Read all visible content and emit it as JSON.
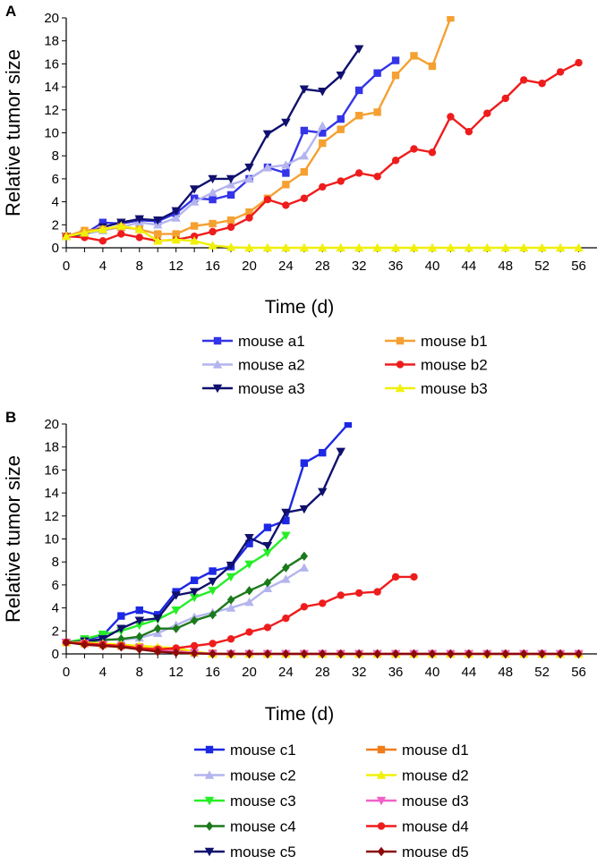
{
  "chart_data": [
    {
      "type": "line",
      "panel_label": "A",
      "title": "",
      "xlabel": "Time (d)",
      "ylabel": "Relative tumor size",
      "xlim": [
        0,
        58
      ],
      "ylim": [
        0,
        20
      ],
      "xticks": [
        "0",
        "4",
        "8",
        "12",
        "16",
        "20",
        "24",
        "28",
        "32",
        "36",
        "40",
        "44",
        "48",
        "52",
        "56"
      ],
      "yticks": [
        "0",
        "2",
        "4",
        "6",
        "8",
        "10",
        "12",
        "14",
        "16",
        "18",
        "20"
      ],
      "legend_position": "bottom",
      "series": [
        {
          "name": "mouse a1",
          "color": "#3434e8",
          "marker": "square",
          "x": [
            0,
            2,
            4,
            6,
            8,
            10,
            12,
            14,
            16,
            18,
            20,
            22,
            24,
            26,
            28,
            30,
            32,
            34,
            36
          ],
          "y": [
            1,
            1.2,
            2.2,
            2.1,
            2.4,
            2.3,
            3.0,
            4.3,
            4.2,
            4.6,
            6.0,
            7.0,
            6.5,
            10.2,
            10.0,
            11.2,
            13.7,
            15.2,
            16.3
          ]
        },
        {
          "name": "mouse a2",
          "color": "#b4b4ee",
          "marker": "triangle-up",
          "x": [
            0,
            2,
            4,
            6,
            8,
            10,
            12,
            14,
            16,
            18,
            20,
            22,
            24,
            26,
            28
          ],
          "y": [
            1,
            1.2,
            1.5,
            1.8,
            2.2,
            2.0,
            2.6,
            4.0,
            4.8,
            5.5,
            6.0,
            7.0,
            7.2,
            8.0,
            10.6
          ]
        },
        {
          "name": "mouse a3",
          "color": "#10106e",
          "marker": "triangle-down",
          "x": [
            0,
            2,
            4,
            6,
            8,
            10,
            12,
            14,
            16,
            18,
            20,
            22,
            24,
            26,
            28,
            30,
            32
          ],
          "y": [
            1,
            1.2,
            1.8,
            2.2,
            2.5,
            2.4,
            3.2,
            5.1,
            6.0,
            6.0,
            7.0,
            9.9,
            10.9,
            13.8,
            13.6,
            15.0,
            17.3
          ]
        },
        {
          "name": "mouse b1",
          "color": "#f5a031",
          "marker": "square",
          "x": [
            0,
            2,
            4,
            6,
            8,
            10,
            12,
            14,
            16,
            18,
            20,
            22,
            24,
            26,
            28,
            30,
            32,
            34,
            36,
            38,
            40,
            42
          ],
          "y": [
            1,
            1.5,
            1.6,
            1.8,
            1.6,
            1.2,
            1.2,
            1.9,
            2.1,
            2.4,
            3.1,
            4.3,
            5.5,
            6.6,
            9.1,
            10.3,
            11.5,
            11.8,
            15.0,
            16.7,
            15.8,
            20
          ]
        },
        {
          "name": "mouse b2",
          "color": "#ee1c1c",
          "marker": "circle",
          "x": [
            0,
            2,
            4,
            6,
            8,
            10,
            12,
            14,
            16,
            18,
            20,
            22,
            24,
            26,
            28,
            30,
            32,
            34,
            36,
            38,
            40,
            42,
            44,
            46,
            48,
            50,
            52,
            54,
            56
          ],
          "y": [
            1,
            0.9,
            0.6,
            1.2,
            0.9,
            0.6,
            0.7,
            1.0,
            1.4,
            1.8,
            2.6,
            4.2,
            3.7,
            4.3,
            5.3,
            5.8,
            6.5,
            6.2,
            7.6,
            8.6,
            8.3,
            11.4,
            10.1,
            11.7,
            13.0,
            14.6,
            14.3,
            15.3,
            16.1
          ]
        },
        {
          "name": "mouse b3",
          "color": "#f0f00a",
          "marker": "triangle-up",
          "x": [
            0,
            2,
            4,
            6,
            8,
            10,
            12,
            14,
            16,
            18,
            20,
            22,
            24,
            26,
            28,
            30,
            32,
            34,
            36,
            38,
            40,
            42,
            44,
            46,
            48,
            50,
            52,
            54,
            56
          ],
          "y": [
            1,
            1.3,
            1.6,
            1.9,
            1.6,
            0.6,
            0.7,
            0.6,
            0.2,
            0.05,
            0,
            0,
            0,
            0,
            0,
            0,
            0,
            0,
            0,
            0,
            0,
            0,
            0,
            0,
            0,
            0,
            0,
            0,
            0
          ]
        }
      ]
    },
    {
      "type": "line",
      "panel_label": "B",
      "title": "",
      "xlabel": "Time (d)",
      "ylabel": "Relative tumor size",
      "xlim": [
        0,
        58
      ],
      "ylim": [
        0,
        20
      ],
      "xticks": [
        "0",
        "4",
        "8",
        "12",
        "16",
        "20",
        "24",
        "28",
        "32",
        "36",
        "40",
        "44",
        "48",
        "52",
        "56"
      ],
      "yticks": [
        "0",
        "2",
        "4",
        "6",
        "8",
        "10",
        "12",
        "14",
        "16",
        "18",
        "20"
      ],
      "legend_position": "bottom",
      "series": [
        {
          "name": "mouse c1",
          "color": "#1c28e4",
          "marker": "square",
          "x": [
            0,
            2,
            4,
            6,
            8,
            10,
            12,
            14,
            16,
            18,
            20,
            22,
            24,
            26,
            28,
            30.8
          ],
          "y": [
            1,
            1.2,
            1.6,
            3.3,
            3.8,
            3.4,
            5.4,
            6.4,
            7.2,
            7.6,
            9.6,
            11.0,
            11.6,
            16.6,
            17.5,
            20
          ]
        },
        {
          "name": "mouse c2",
          "color": "#b4b4ee",
          "marker": "triangle-up",
          "x": [
            0,
            2,
            4,
            6,
            8,
            10,
            12,
            14,
            16,
            18,
            20,
            22,
            24,
            26
          ],
          "y": [
            1,
            1.1,
            1.3,
            1.2,
            1.4,
            1.8,
            2.5,
            3.2,
            3.6,
            4.0,
            4.5,
            5.7,
            6.5,
            7.5
          ]
        },
        {
          "name": "mouse c3",
          "color": "#26ee26",
          "marker": "triangle-down",
          "x": [
            0,
            2,
            4,
            6,
            8,
            10,
            12,
            14,
            16,
            18,
            20,
            22,
            24
          ],
          "y": [
            1,
            1.3,
            1.7,
            2.0,
            2.5,
            3.0,
            3.8,
            4.9,
            5.5,
            6.7,
            7.8,
            8.8,
            10.3
          ]
        },
        {
          "name": "mouse c4",
          "color": "#1a7a1a",
          "marker": "diamond",
          "x": [
            0,
            2,
            4,
            6,
            8,
            10,
            12,
            14,
            16,
            18,
            20,
            22,
            24,
            26
          ],
          "y": [
            1,
            1.0,
            1.2,
            1.3,
            1.5,
            2.2,
            2.2,
            2.9,
            3.4,
            4.7,
            5.5,
            6.2,
            7.5,
            8.5
          ]
        },
        {
          "name": "mouse c5",
          "color": "#10106e",
          "marker": "triangle-down",
          "x": [
            0,
            2,
            4,
            6,
            8,
            10,
            12,
            14,
            16,
            18,
            20,
            22,
            24,
            26,
            28,
            30
          ],
          "y": [
            1,
            1.1,
            1.3,
            2.2,
            2.9,
            3.1,
            5.1,
            5.4,
            6.3,
            7.7,
            10.1,
            9.4,
            12.3,
            12.6,
            14.1,
            17.6
          ]
        },
        {
          "name": "mouse d1",
          "color": "#f07d1a",
          "marker": "square",
          "x": [
            0,
            2,
            4,
            6,
            8,
            10,
            12,
            14,
            16,
            18,
            20,
            22,
            24,
            26,
            28,
            30,
            32,
            34,
            36,
            38,
            40,
            42,
            44,
            46,
            48,
            50,
            52,
            54,
            56
          ],
          "y": [
            1,
            0.9,
            0.8,
            0.7,
            0.6,
            0.4,
            0.3,
            0.1,
            0.05,
            0,
            0,
            0,
            0,
            0,
            0,
            0,
            0,
            0,
            0,
            0,
            0,
            0,
            0,
            0,
            0,
            0,
            0,
            0,
            0
          ]
        },
        {
          "name": "mouse d2",
          "color": "#f0f00a",
          "marker": "triangle-up",
          "x": [
            0,
            2,
            4,
            6,
            8,
            10,
            12,
            14,
            16,
            18,
            20,
            22,
            24,
            26,
            28,
            30,
            32,
            34,
            36,
            38,
            40,
            42,
            44,
            46,
            48,
            50,
            52,
            54,
            56
          ],
          "y": [
            1,
            1.0,
            0.9,
            0.8,
            0.7,
            0.6,
            0.5,
            0.2,
            0,
            0,
            0,
            0,
            0,
            0,
            0,
            0,
            0,
            0,
            0,
            0,
            0,
            0,
            0,
            0,
            0,
            0,
            0,
            0,
            0
          ]
        },
        {
          "name": "mouse d3",
          "color": "#f060c8",
          "marker": "triangle-down",
          "x": [
            0,
            2,
            4,
            6,
            8,
            10,
            12,
            14,
            16,
            18,
            20,
            22,
            24,
            26,
            28,
            30,
            32,
            34,
            36,
            38,
            40,
            42,
            44,
            46,
            48,
            50,
            52,
            54,
            56
          ],
          "y": [
            1,
            0.9,
            0.8,
            0.6,
            0.5,
            0.3,
            0.2,
            0.1,
            0,
            0,
            0,
            0,
            0,
            0,
            0,
            0,
            0,
            0,
            0,
            0,
            0,
            0,
            0,
            0,
            0,
            0,
            0,
            0,
            0
          ]
        },
        {
          "name": "mouse d4",
          "color": "#ee1c1c",
          "marker": "circle",
          "x": [
            0,
            2,
            4,
            6,
            8,
            10,
            12,
            14,
            16,
            18,
            20,
            22,
            24,
            26,
            28,
            30,
            32,
            34,
            36,
            38
          ],
          "y": [
            1,
            0.9,
            0.8,
            0.7,
            0.5,
            0.4,
            0.5,
            0.7,
            0.9,
            1.3,
            1.9,
            2.3,
            3.1,
            4.1,
            4.4,
            5.1,
            5.3,
            5.4,
            6.7,
            6.7
          ]
        },
        {
          "name": "mouse d5",
          "color": "#8b0a0a",
          "marker": "diamond",
          "x": [
            0,
            2,
            4,
            6,
            8,
            10,
            12,
            14,
            16,
            18,
            20,
            22,
            24,
            26,
            28,
            30,
            32,
            34,
            36,
            38,
            40,
            42,
            44,
            46,
            48,
            50,
            52,
            54,
            56
          ],
          "y": [
            1,
            0.8,
            0.7,
            0.6,
            0.4,
            0.2,
            0.1,
            0.05,
            0,
            0,
            0,
            0,
            0,
            0,
            0,
            0,
            0,
            0,
            0,
            0,
            0,
            0,
            0,
            0,
            0,
            0,
            0,
            0,
            0
          ]
        }
      ]
    }
  ]
}
